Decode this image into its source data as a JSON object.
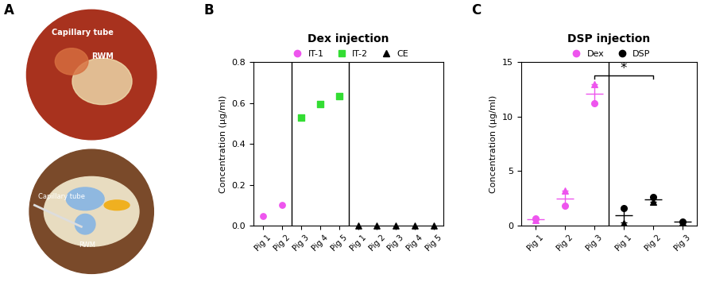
{
  "panel_labels": [
    "A",
    "B",
    "C"
  ],
  "panel_a": {
    "photo": {
      "labels": [
        "Capillary tube",
        "RWM"
      ]
    },
    "diagram": {
      "labels": [
        "Capillary tube",
        "RWM"
      ]
    }
  },
  "chart_data": [
    {
      "type": "scatter",
      "title": "Dex injection",
      "y_label": "Concentration (µg/ml)",
      "categories": [
        "Pig 1",
        "Pig 2",
        "Pig 3",
        "Pig 4",
        "Pig 5",
        "Pig 1",
        "Pig 2",
        "Pig 3",
        "Pig 4",
        "Pig 5"
      ],
      "ylim": [
        0,
        0.8
      ],
      "yticks": [
        {
          "value": 0,
          "label": "0.0"
        },
        0.2,
        0.4,
        0.6,
        0.8
      ],
      "legend": "top",
      "series": [
        {
          "name": "IT-1",
          "color": "#ee55ee",
          "marker": "circle",
          "values": [
            0.045,
            0.1,
            null,
            null,
            null,
            null,
            null,
            null,
            null,
            null
          ]
        },
        {
          "name": "IT-2",
          "color": "#33dd33",
          "marker": "square",
          "values": [
            null,
            null,
            0.53,
            0.595,
            0.635,
            null,
            null,
            null,
            null,
            null
          ]
        },
        {
          "name": "CE",
          "color": "#000000",
          "marker": "triangle",
          "values": [
            null,
            null,
            null,
            null,
            null,
            0,
            0,
            0,
            0,
            0
          ]
        }
      ]
    },
    {
      "type": "scatter",
      "title": "DSP injection",
      "y_label": "Concentration (µg/ml)",
      "categories": [
        "Pig 1",
        "Pig 2",
        "Pig 3",
        "Pig 1",
        "Pig 2",
        "Pig 3"
      ],
      "ylim": [
        0,
        15
      ],
      "yticks": [
        0,
        5,
        10,
        15
      ],
      "legend": "top",
      "series": [
        {
          "name": "Dex",
          "color": "#ee55ee",
          "marker": "circle",
          "values": [
            0.58,
            2.5,
            12.1,
            null,
            null,
            null
          ],
          "error": [
            0.08,
            0.7,
            0.9,
            null,
            null,
            null
          ],
          "replicates": [
            {
              "marker": "triangle",
              "values": [
                0.5,
                3.2,
                13.0,
                null,
                null,
                null
              ]
            },
            {
              "marker": "circle",
              "values": [
                0.65,
                1.8,
                11.2,
                null,
                null,
                null
              ]
            }
          ]
        },
        {
          "name": "DSP",
          "color": "#000000",
          "marker": "circle",
          "values": [
            null,
            null,
            null,
            0.93,
            2.4,
            0.35
          ],
          "error": [
            null,
            null,
            null,
            0.65,
            0.2,
            0.05
          ],
          "replicates": [
            {
              "marker": "triangle",
              "values": [
                null,
                null,
                null,
                0.25,
                2.2,
                0.3
              ]
            },
            {
              "marker": "circle",
              "values": [
                null,
                null,
                null,
                1.6,
                2.6,
                0.4
              ]
            }
          ]
        }
      ],
      "annotations": [
        {
          "text": "*",
          "from": 2,
          "to": 4,
          "y": 13.8
        }
      ]
    }
  ]
}
